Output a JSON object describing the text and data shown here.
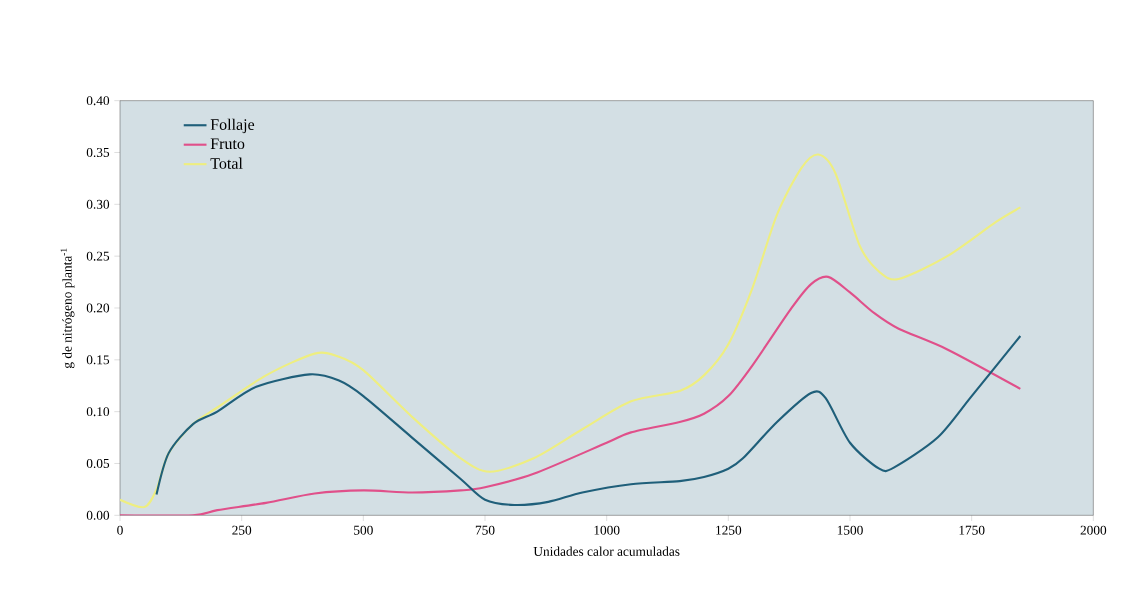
{
  "chart_data": {
    "type": "line",
    "xlabel": "Unidades calor acumuladas",
    "ylabel": "g de nitrógeno planta$^{-1}$",
    "xlim": [
      0,
      2000
    ],
    "xticks": [
      0,
      250,
      500,
      750,
      1000,
      1250,
      1500,
      1750,
      2000
    ],
    "ylim": [
      0,
      0.4
    ],
    "yticks": [
      {
        "value": 0,
        "label": "0.00"
      },
      {
        "value": 0.05,
        "label": "0.05"
      },
      {
        "value": 0.1,
        "label": "0.10"
      },
      {
        "value": 0.15,
        "label": "0.15"
      },
      {
        "value": 0.2,
        "label": "0.20"
      },
      {
        "value": 0.25,
        "label": "0.25"
      },
      {
        "value": 0.3,
        "label": "0.30"
      },
      {
        "value": 0.35,
        "label": "0.35"
      },
      {
        "value": 0.4,
        "label": "0.40"
      }
    ],
    "grid": false,
    "legend": "top left",
    "marker": "none",
    "line_style": "solid",
    "series": [
      {
        "name": "Follaje",
        "color": "#1f5f7a",
        "x": [
          75,
          100,
          150,
          200,
          280,
          390,
          450,
          500,
          600,
          700,
          750,
          810,
          880,
          950,
          1050,
          1150,
          1200,
          1250,
          1280,
          1350,
          1420,
          1450,
          1500,
          1560,
          1590,
          1680,
          1750,
          1850
        ],
        "values": [
          0.02,
          0.06,
          0.088,
          0.1,
          0.124,
          0.136,
          0.13,
          0.115,
          0.075,
          0.035,
          0.015,
          0.01,
          0.013,
          0.022,
          0.03,
          0.033,
          0.037,
          0.045,
          0.055,
          0.09,
          0.118,
          0.113,
          0.07,
          0.045,
          0.046,
          0.075,
          0.115,
          0.173
        ]
      },
      {
        "name": "Fruto",
        "color": "#e0508a",
        "x": [
          0,
          150,
          200,
          300,
          400,
          500,
          600,
          700,
          750,
          850,
          1000,
          1050,
          1150,
          1200,
          1250,
          1300,
          1380,
          1420,
          1455,
          1500,
          1550,
          1600,
          1700,
          1850
        ],
        "values": [
          0,
          0,
          0.005,
          0.012,
          0.021,
          0.024,
          0.022,
          0.024,
          0.027,
          0.04,
          0.07,
          0.08,
          0.09,
          0.098,
          0.115,
          0.145,
          0.2,
          0.223,
          0.23,
          0.215,
          0.195,
          0.18,
          0.16,
          0.122
        ]
      },
      {
        "name": "Total",
        "color": "#eeee80",
        "x": [
          0,
          50,
          75,
          100,
          150,
          200,
          300,
          400,
          450,
          500,
          600,
          700,
          760,
          850,
          950,
          1050,
          1150,
          1200,
          1250,
          1300,
          1350,
          1400,
          1435,
          1470,
          1520,
          1560,
          1600,
          1700,
          1800,
          1850
        ],
        "values": [
          0.015,
          0.008,
          0.025,
          0.06,
          0.088,
          0.104,
          0.135,
          0.156,
          0.153,
          0.14,
          0.095,
          0.055,
          0.042,
          0.055,
          0.083,
          0.11,
          0.12,
          0.135,
          0.165,
          0.22,
          0.29,
          0.335,
          0.348,
          0.33,
          0.26,
          0.235,
          0.228,
          0.25,
          0.283,
          0.297
        ]
      }
    ]
  }
}
